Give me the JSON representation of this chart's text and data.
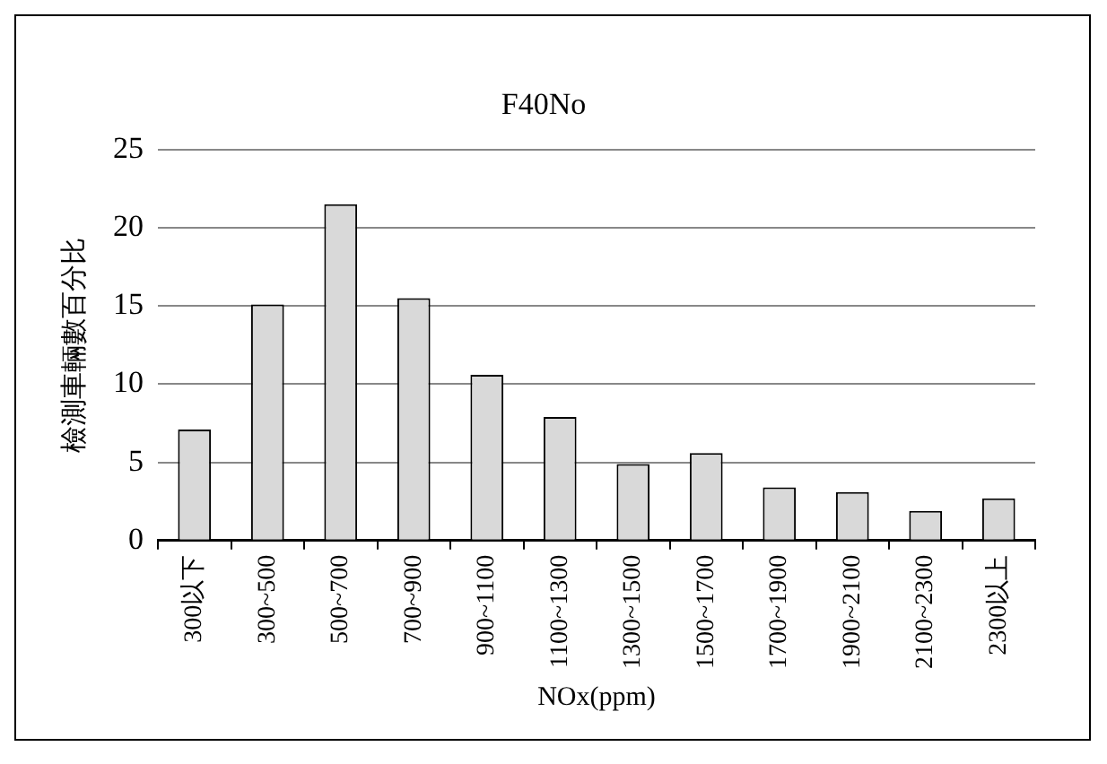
{
  "chart_data": {
    "type": "bar",
    "title": "F40No",
    "xlabel": "NOx(ppm)",
    "ylabel": "檢測車輛數百分比",
    "categories": [
      "300以下",
      "300~500",
      "500~700",
      "700~900",
      "900~1100",
      "1100~1300",
      "1300~1500",
      "1500~1700",
      "1700~1900",
      "1900~2100",
      "2100~2300",
      "2300以上"
    ],
    "values": [
      7.1,
      15.1,
      21.5,
      15.5,
      10.6,
      7.9,
      4.9,
      5.6,
      3.4,
      3.1,
      1.9,
      2.7
    ],
    "color": "#d9d9d9",
    "ylim": [
      0,
      25
    ],
    "yticks": [
      0,
      5,
      10,
      15,
      20,
      25
    ],
    "grid": "y",
    "legend": false
  }
}
